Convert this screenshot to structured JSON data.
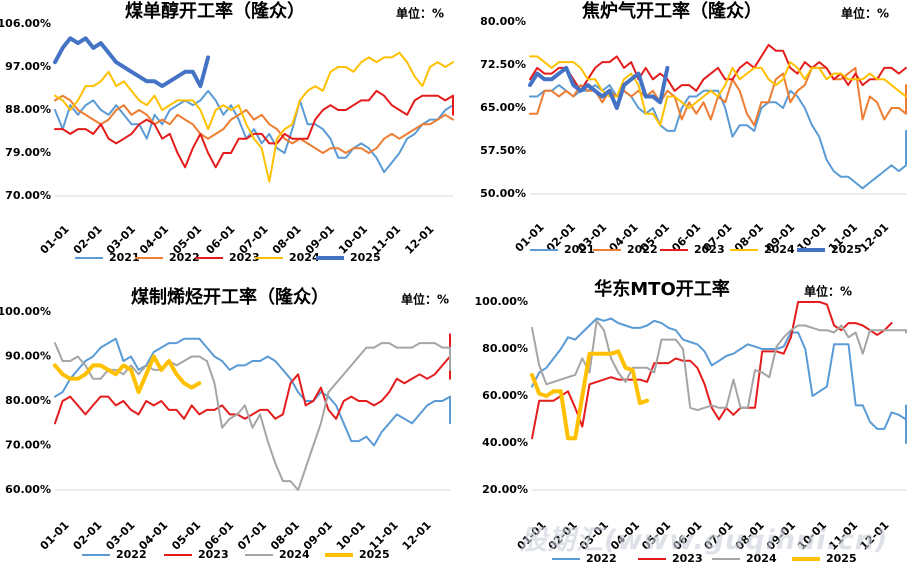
{
  "watermark": "股期汇(www.guqihui.cn)",
  "chart_data": [
    {
      "type": "line",
      "title": "煤单醇开工率（隆众）",
      "unit_label": "单位：%",
      "yticks": [
        "106.00%",
        "97.00%",
        "88.00%",
        "79.00%",
        "70.00%"
      ],
      "ylim": [
        70,
        106
      ],
      "xticks": [
        "01-01",
        "02-01",
        "03-01",
        "04-01",
        "05-01",
        "06-01",
        "07-01",
        "08-01",
        "09-01",
        "10-01",
        "11-01",
        "12-01"
      ],
      "series": [
        {
          "name": "2021",
          "color": "#5B9BD5",
          "width": 2,
          "values": [
            88,
            84,
            89,
            87,
            89,
            90,
            88,
            87,
            89,
            87,
            85,
            85,
            82,
            87,
            85,
            88,
            89,
            90,
            89,
            90,
            92,
            90,
            87,
            89,
            86,
            82,
            84,
            81,
            83,
            80,
            79,
            84,
            90,
            85,
            85,
            84,
            82,
            78,
            78,
            80,
            81,
            80,
            78,
            75,
            77,
            79,
            82,
            83,
            85,
            86,
            86,
            88,
            89
          ]
        },
        {
          "name": "2022",
          "color": "#ED7D31",
          "width": 2,
          "values": [
            90,
            91,
            90,
            88,
            87,
            86,
            85,
            86,
            88,
            89,
            87,
            88,
            87,
            85,
            86,
            85,
            87,
            86,
            85,
            83,
            82,
            83,
            84,
            86,
            87,
            88,
            86,
            87,
            85,
            84,
            82,
            81,
            82,
            81,
            80,
            79,
            80,
            80,
            79,
            80,
            80,
            79,
            80,
            82,
            83,
            82,
            83,
            84,
            85,
            85,
            86,
            87,
            86
          ]
        },
        {
          "name": "2023",
          "color": "#E41C1C",
          "width": 2,
          "values": [
            84,
            84,
            83,
            84,
            84,
            83,
            85,
            82,
            81,
            82,
            83,
            85,
            86,
            85,
            82,
            83,
            79,
            76,
            80,
            83,
            79,
            76,
            79,
            79,
            82,
            82,
            83,
            83,
            81,
            81,
            83,
            82,
            82,
            82,
            86,
            88,
            89,
            88,
            88,
            89,
            90,
            90,
            92,
            91,
            89,
            88,
            87,
            90,
            91,
            91,
            91,
            90,
            91,
            91,
            90,
            87,
            91,
            90
          ]
        },
        {
          "name": "2024",
          "color": "#FFC000",
          "width": 2,
          "values": [
            91,
            90,
            88,
            90,
            93,
            93,
            94,
            96,
            93,
            94,
            92,
            90,
            89,
            91,
            88,
            89,
            90,
            90,
            90,
            88,
            84,
            88,
            89,
            88,
            89,
            85,
            82,
            80,
            73,
            82,
            84,
            85,
            90,
            92,
            93,
            92,
            96,
            97,
            97,
            96,
            98,
            99,
            98,
            99,
            99,
            100,
            98,
            95,
            93,
            97,
            98,
            97,
            98
          ]
        },
        {
          "name": "2025",
          "color": "#4472C4",
          "width": 4,
          "values": [
            98,
            101,
            103,
            102,
            103,
            101,
            102,
            100,
            98,
            97,
            96,
            95,
            94,
            94,
            93,
            94,
            95,
            96,
            96,
            93,
            99
          ]
        }
      ]
    },
    {
      "type": "line",
      "title": "焦炉气开工率（隆众）",
      "unit_label": "单位：%",
      "yticks": [
        "80.00%",
        "72.50%",
        "65.00%",
        "57.50%",
        "50.00%"
      ],
      "ylim": [
        50,
        80
      ],
      "xticks": [
        "01-01",
        "02-01",
        "03-01",
        "04-01",
        "05-01",
        "06-01",
        "07-01",
        "08-01",
        "09-01",
        "10-01",
        "11-01",
        "12-01"
      ],
      "series": [
        {
          "name": "2021",
          "color": "#5B9BD5",
          "width": 2,
          "values": [
            67,
            67,
            68,
            68,
            69,
            68,
            67,
            68,
            68,
            69,
            68,
            69,
            67,
            68,
            67,
            65,
            64,
            65,
            62,
            61,
            61,
            65,
            67,
            67,
            68,
            68,
            68,
            65,
            60,
            62,
            62,
            61,
            65,
            66,
            66,
            65,
            68,
            67,
            65,
            62,
            60,
            56,
            54,
            53,
            53,
            52,
            51,
            52,
            53,
            54,
            55,
            54,
            55,
            56,
            61
          ]
        },
        {
          "name": "2022",
          "color": "#ED7D31",
          "width": 2,
          "values": [
            64,
            64,
            68,
            68,
            67,
            68,
            67,
            69,
            68,
            68,
            66,
            68,
            67,
            68,
            67,
            68,
            67,
            68,
            66,
            68,
            67,
            63,
            66,
            64,
            66,
            63,
            67,
            66,
            70,
            68,
            64,
            62,
            66,
            66,
            70,
            71,
            66,
            68,
            69,
            72,
            72,
            72,
            70,
            70,
            71,
            72,
            63,
            67,
            66,
            63,
            65,
            65,
            64,
            66,
            69
          ]
        },
        {
          "name": "2023",
          "color": "#E41C1C",
          "width": 2,
          "values": [
            70,
            72,
            71,
            71,
            72,
            72,
            70,
            68,
            70,
            72,
            73,
            73,
            74,
            72,
            73,
            70,
            72,
            70,
            71,
            70,
            68,
            69,
            69,
            68,
            70,
            71,
            72,
            70,
            70,
            72,
            73,
            72,
            74,
            76,
            75,
            75,
            72,
            71,
            73,
            72,
            73,
            72,
            70,
            71,
            69,
            71,
            69,
            70,
            70,
            72,
            72,
            71,
            72
          ]
        },
        {
          "name": "2024",
          "color": "#FFC000",
          "width": 2,
          "values": [
            74,
            74,
            73,
            72,
            73,
            73,
            73,
            72,
            70,
            70,
            68,
            67,
            67,
            70,
            71,
            69,
            64,
            64,
            62,
            67,
            67,
            66,
            65,
            66,
            67,
            68,
            67,
            69,
            72,
            70,
            71,
            72,
            72,
            70,
            69,
            70,
            73,
            72,
            70,
            72,
            72,
            70,
            71,
            71,
            70,
            70,
            70,
            71,
            70,
            70,
            69,
            68,
            67
          ]
        },
        {
          "name": "2025",
          "color": "#4472C4",
          "width": 4,
          "values": [
            69,
            71,
            70,
            70,
            71,
            72,
            69,
            68,
            69,
            68,
            67,
            68,
            65,
            69,
            70,
            71,
            67,
            67,
            66,
            72
          ]
        }
      ]
    },
    {
      "type": "line",
      "title": "煤制烯烃开工率（隆众）",
      "unit_label": "单位：%",
      "yticks": [
        "100.00%",
        "90.00%",
        "80.00%",
        "70.00%",
        "60.00%"
      ],
      "ylim": [
        60,
        100
      ],
      "xticks": [
        "01-01",
        "02-01",
        "03-01",
        "04-01",
        "05-01",
        "06-01",
        "07-01",
        "08-01",
        "09-01",
        "10-01",
        "11-01",
        "12-01"
      ],
      "series": [
        {
          "name": "2022",
          "color": "#5B9BD5",
          "width": 2,
          "values": [
            81,
            82,
            85,
            87,
            89,
            90,
            92,
            93,
            94,
            89,
            90,
            87,
            88,
            91,
            92,
            93,
            93,
            94,
            94,
            94,
            92,
            90,
            89,
            87,
            88,
            88,
            89,
            89,
            90,
            89,
            87,
            85,
            82,
            80,
            80,
            82,
            81,
            79,
            75,
            71,
            71,
            72,
            70,
            73,
            75,
            77,
            76,
            75,
            77,
            79,
            80,
            80,
            81,
            81,
            76,
            76,
            77,
            78,
            77,
            76,
            75
          ]
        },
        {
          "name": "2023",
          "color": "#E41C1C",
          "width": 2,
          "values": [
            75,
            80,
            81,
            79,
            77,
            79,
            81,
            81,
            79,
            80,
            78,
            77,
            80,
            79,
            80,
            78,
            78,
            76,
            79,
            77,
            78,
            78,
            79,
            77,
            77,
            76,
            77,
            78,
            78,
            76,
            77,
            84,
            86,
            79,
            80,
            83,
            78,
            76,
            80,
            81,
            80,
            80,
            79,
            80,
            82,
            85,
            84,
            85,
            86,
            85,
            86,
            88,
            90,
            91,
            92,
            95,
            94,
            92,
            93,
            91,
            90,
            90,
            89,
            88,
            85,
            88,
            90
          ]
        },
        {
          "name": "2024",
          "color": "#A5A5A5",
          "width": 2,
          "values": [
            93,
            89,
            89,
            90,
            88,
            85,
            85,
            87,
            87,
            86,
            88,
            86,
            88,
            87,
            87,
            89,
            88,
            89,
            90,
            90,
            89,
            84,
            74,
            76,
            77,
            79,
            74,
            77,
            71,
            66,
            62,
            62,
            60,
            65,
            70,
            75,
            82,
            84,
            86,
            88,
            90,
            92,
            92,
            93,
            93,
            92,
            92,
            92,
            93,
            93,
            93,
            92,
            92,
            91,
            89,
            88,
            87,
            87,
            88,
            89,
            90,
            91
          ]
        },
        {
          "name": "2025",
          "color": "#FFC000",
          "width": 4,
          "values": [
            88,
            86,
            85,
            85,
            86,
            88,
            88,
            87,
            86,
            88,
            87,
            82,
            86,
            90,
            87,
            89,
            86,
            84,
            83,
            84
          ]
        }
      ]
    },
    {
      "type": "line",
      "title": "华东MTO开工率",
      "unit_label": "单位：%",
      "yticks": [
        "100.00%",
        "80.00%",
        "60.00%",
        "40.00%",
        "20.00%"
      ],
      "ylim": [
        20,
        100
      ],
      "xticks": [
        "01-01",
        "02-01",
        "03-01",
        "04-01",
        "05-01",
        "06-01",
        "07-01",
        "08-01",
        "09-01",
        "10-01",
        "11-01",
        "12-01"
      ],
      "series": [
        {
          "name": "2022",
          "color": "#5B9BD5",
          "width": 2,
          "values": [
            64,
            70,
            72,
            76,
            80,
            85,
            84,
            87,
            90,
            93,
            92,
            93,
            91,
            90,
            89,
            89,
            90,
            92,
            91,
            89,
            88,
            84,
            83,
            82,
            79,
            73,
            75,
            77,
            78,
            80,
            82,
            81,
            80,
            80,
            80,
            81,
            87,
            87,
            80,
            60,
            62,
            64,
            82,
            82,
            82,
            56,
            56,
            49,
            46,
            46,
            53,
            52,
            50,
            52,
            53,
            56,
            40,
            41,
            41,
            41,
            41
          ]
        },
        {
          "name": "2023",
          "color": "#E41C1C",
          "width": 2,
          "values": [
            42,
            58,
            58,
            58,
            60,
            62,
            55,
            47,
            65,
            66,
            67,
            68,
            67,
            67,
            67,
            67,
            66,
            74,
            74,
            74,
            76,
            75,
            75,
            72,
            65,
            55,
            50,
            55,
            52,
            55,
            55,
            55,
            79,
            79,
            79,
            78,
            85,
            100,
            100,
            100,
            100,
            99,
            90,
            88,
            91,
            91,
            90,
            88,
            86,
            88,
            91
          ]
        },
        {
          "name": "2024",
          "color": "#A5A5A5",
          "width": 2,
          "values": [
            89,
            73,
            65,
            66,
            67,
            68,
            69,
            76,
            70,
            92,
            88,
            76,
            70,
            66,
            72,
            72,
            72,
            70,
            84,
            84,
            84,
            80,
            55,
            54,
            55,
            56,
            55,
            55,
            67,
            55,
            55,
            71,
            70,
            68,
            81,
            85,
            88,
            90,
            90,
            89,
            88,
            88,
            87,
            90,
            85,
            87,
            78,
            88,
            88,
            88,
            88,
            88,
            88,
            88,
            87
          ]
        },
        {
          "name": "2025",
          "color": "#FFC000",
          "width": 4,
          "values": [
            69,
            61,
            60,
            62,
            62,
            42,
            42,
            60,
            78,
            78,
            78,
            78,
            79,
            72,
            71,
            57,
            58
          ]
        }
      ]
    }
  ]
}
